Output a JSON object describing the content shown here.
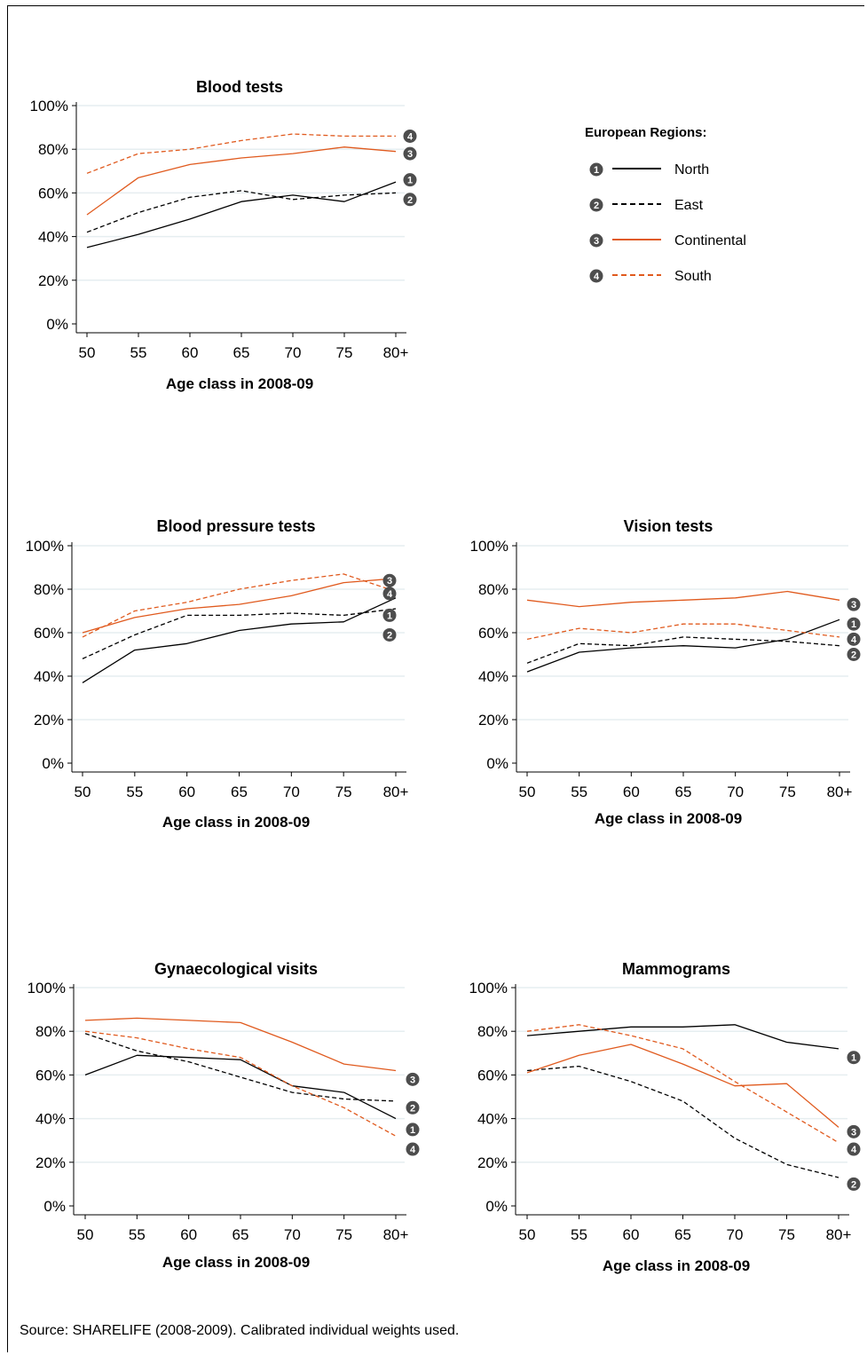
{
  "colors": {
    "north": "#000000",
    "east": "#000000",
    "continental": "#e05a1e",
    "south": "#e05a1e",
    "grid": "#e6eef0",
    "badge": "#4d4d4d"
  },
  "legend": {
    "title": "European Regions:",
    "items": [
      {
        "num": "1",
        "label": "North",
        "color": "#000000",
        "dash": "solid"
      },
      {
        "num": "2",
        "label": "East",
        "color": "#000000",
        "dash": "dashed"
      },
      {
        "num": "3",
        "label": "Continental",
        "color": "#e05a1e",
        "dash": "solid"
      },
      {
        "num": "4",
        "label": "South",
        "color": "#e05a1e",
        "dash": "dashed"
      }
    ]
  },
  "source": "Source: SHARELIFE (2008-2009). Calibrated individual weights used.",
  "chart_data": [
    {
      "type": "line",
      "title": "Blood tests",
      "xlabel": "Age class in 2008-09",
      "ylabel": "",
      "categories": [
        "50",
        "55",
        "60",
        "65",
        "70",
        "75",
        "80+"
      ],
      "yticks": [
        "0%",
        "20%",
        "40%",
        "60%",
        "80%",
        "100%"
      ],
      "ylim": [
        0,
        100
      ],
      "grid": true,
      "series": [
        {
          "name": "North",
          "values": [
            35,
            41,
            48,
            56,
            59,
            56,
            65
          ]
        },
        {
          "name": "East",
          "values": [
            42,
            51,
            58,
            61,
            57,
            59,
            60
          ]
        },
        {
          "name": "Continental",
          "values": [
            50,
            67,
            73,
            76,
            78,
            81,
            79
          ]
        },
        {
          "name": "South",
          "values": [
            69,
            78,
            80,
            84,
            87,
            86,
            86
          ]
        }
      ],
      "end_labels": [
        {
          "num": "4",
          "y": 86
        },
        {
          "num": "3",
          "y": 78
        },
        {
          "num": "1",
          "y": 66
        },
        {
          "num": "2",
          "y": 57
        }
      ]
    },
    {
      "type": "line",
      "title": "Blood pressure tests",
      "xlabel": "Age class in 2008-09",
      "ylabel": "",
      "categories": [
        "50",
        "55",
        "60",
        "65",
        "70",
        "75",
        "80+"
      ],
      "yticks": [
        "0%",
        "20%",
        "40%",
        "60%",
        "80%",
        "100%"
      ],
      "ylim": [
        0,
        100
      ],
      "grid": true,
      "series": [
        {
          "name": "North",
          "values": [
            37,
            52,
            55,
            61,
            64,
            65,
            76
          ]
        },
        {
          "name": "East",
          "values": [
            48,
            59,
            68,
            68,
            69,
            68,
            71
          ]
        },
        {
          "name": "Continental",
          "values": [
            60,
            67,
            71,
            73,
            77,
            83,
            85
          ]
        },
        {
          "name": "South",
          "values": [
            58,
            70,
            74,
            80,
            84,
            87,
            79
          ]
        }
      ],
      "end_labels": [
        {
          "num": "3",
          "y": 84
        },
        {
          "num": "4",
          "y": 78
        },
        {
          "num": "1",
          "y": 68
        },
        {
          "num": "2",
          "y": 59
        }
      ]
    },
    {
      "type": "line",
      "title": "Vision tests",
      "xlabel": "Age class in 2008-09",
      "ylabel": "",
      "categories": [
        "50",
        "55",
        "60",
        "65",
        "70",
        "75",
        "80+"
      ],
      "yticks": [
        "0%",
        "20%",
        "40%",
        "60%",
        "80%",
        "100%"
      ],
      "ylim": [
        0,
        100
      ],
      "grid": true,
      "series": [
        {
          "name": "North",
          "values": [
            42,
            51,
            53,
            54,
            53,
            57,
            66
          ]
        },
        {
          "name": "East",
          "values": [
            46,
            55,
            54,
            58,
            57,
            56,
            54
          ]
        },
        {
          "name": "Continental",
          "values": [
            75,
            72,
            74,
            75,
            76,
            79,
            75
          ]
        },
        {
          "name": "South",
          "values": [
            57,
            62,
            60,
            64,
            64,
            61,
            58
          ]
        }
      ],
      "end_labels": [
        {
          "num": "3",
          "y": 73
        },
        {
          "num": "1",
          "y": 64
        },
        {
          "num": "4",
          "y": 57
        },
        {
          "num": "2",
          "y": 50
        }
      ]
    },
    {
      "type": "line",
      "title": "Gynaecological visits",
      "xlabel": "Age class in 2008-09",
      "ylabel": "",
      "categories": [
        "50",
        "55",
        "60",
        "65",
        "70",
        "75",
        "80+"
      ],
      "yticks": [
        "0%",
        "20%",
        "40%",
        "60%",
        "80%",
        "100%"
      ],
      "ylim": [
        0,
        100
      ],
      "grid": true,
      "series": [
        {
          "name": "North",
          "values": [
            60,
            69,
            68,
            67,
            55,
            52,
            40
          ]
        },
        {
          "name": "East",
          "values": [
            79,
            71,
            66,
            59,
            52,
            49,
            48
          ]
        },
        {
          "name": "Continental",
          "values": [
            85,
            86,
            85,
            84,
            75,
            65,
            62
          ]
        },
        {
          "name": "South",
          "values": [
            80,
            77,
            72,
            68,
            55,
            45,
            32
          ]
        }
      ],
      "end_labels": [
        {
          "num": "3",
          "y": 58
        },
        {
          "num": "2",
          "y": 45
        },
        {
          "num": "1",
          "y": 35
        },
        {
          "num": "4",
          "y": 26
        }
      ]
    },
    {
      "type": "line",
      "title": "Mammograms",
      "xlabel": "Age class in 2008-09",
      "ylabel": "",
      "categories": [
        "50",
        "55",
        "60",
        "65",
        "70",
        "75",
        "80+"
      ],
      "yticks": [
        "0%",
        "20%",
        "40%",
        "60%",
        "80%",
        "100%"
      ],
      "ylim": [
        0,
        100
      ],
      "grid": true,
      "series": [
        {
          "name": "North",
          "values": [
            78,
            80,
            82,
            82,
            83,
            75,
            72
          ]
        },
        {
          "name": "East",
          "values": [
            62,
            64,
            57,
            48,
            31,
            19,
            13
          ]
        },
        {
          "name": "Continental",
          "values": [
            61,
            69,
            74,
            65,
            55,
            56,
            36
          ]
        },
        {
          "name": "South",
          "values": [
            80,
            83,
            78,
            72,
            57,
            43,
            29
          ]
        }
      ],
      "end_labels": [
        {
          "num": "1",
          "y": 68
        },
        {
          "num": "3",
          "y": 34
        },
        {
          "num": "4",
          "y": 26
        },
        {
          "num": "2",
          "y": 10
        }
      ]
    }
  ]
}
